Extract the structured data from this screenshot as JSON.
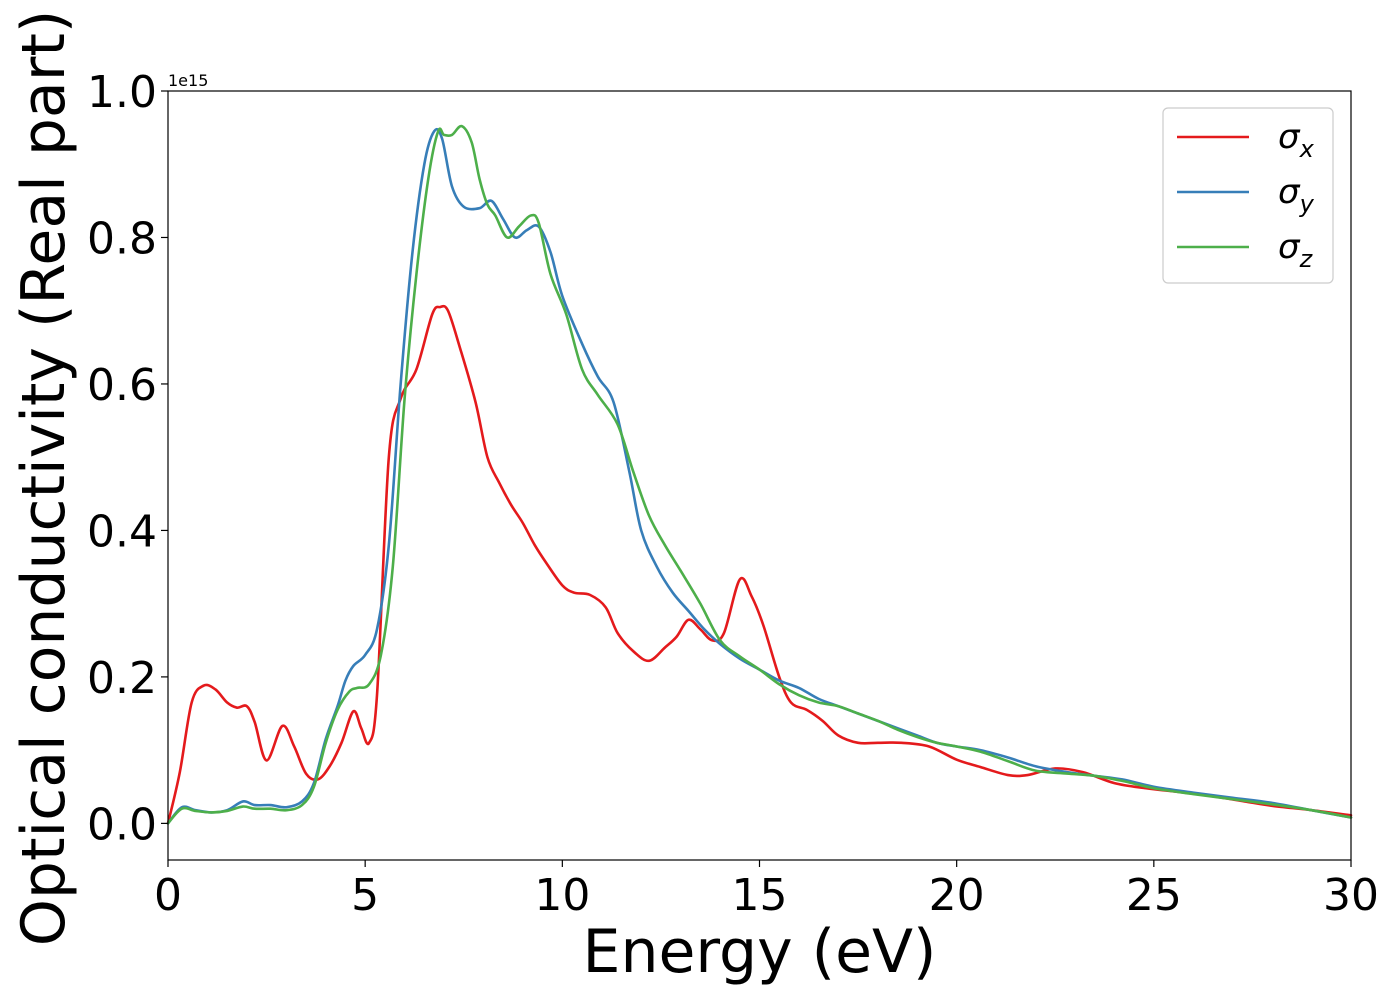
{
  "chart_data": {
    "type": "line",
    "xlabel": "Energy (eV)",
    "ylabel": "Optical conductivity (Real part)",
    "offset_text": "1e15",
    "xlim": [
      0,
      30
    ],
    "ylim": [
      -0.05,
      1.0
    ],
    "xticks": [
      0,
      5,
      10,
      15,
      20,
      25,
      30
    ],
    "xtick_labels": [
      "0",
      "5",
      "10",
      "15",
      "20",
      "25",
      "30"
    ],
    "yticks": [
      0.0,
      0.2,
      0.4,
      0.6,
      0.8,
      1.0
    ],
    "ytick_labels": [
      "0.0",
      "0.2",
      "0.4",
      "0.6",
      "0.8",
      "1.0"
    ],
    "grid": false,
    "legend_position": "top-right",
    "series": [
      {
        "name": "σx",
        "legend_base": "σ",
        "legend_sub": "x",
        "color": "#e41a1c",
        "x": [
          0,
          0.3,
          0.6,
          0.9,
          1.2,
          1.5,
          1.75,
          2.0,
          2.2,
          2.5,
          2.9,
          3.2,
          3.5,
          3.8,
          4.1,
          4.4,
          4.7,
          4.9,
          5.1,
          5.3,
          5.6,
          5.9,
          6.3,
          6.7,
          6.9,
          7.1,
          7.4,
          7.8,
          8.1,
          8.4,
          8.7,
          9.0,
          9.3,
          9.6,
          10.0,
          10.3,
          10.7,
          11.1,
          11.4,
          11.8,
          12.2,
          12.6,
          12.9,
          13.2,
          13.5,
          13.8,
          14.1,
          14.5,
          14.8,
          15.1,
          15.5,
          15.8,
          16.2,
          16.6,
          17.0,
          17.5,
          18.0,
          18.6,
          19.3,
          20.0,
          20.6,
          21.3,
          21.8,
          22.5,
          23.2,
          24.0,
          24.8,
          25.6,
          26.5,
          27.3,
          28.0,
          29.0,
          30.0
        ],
        "y": [
          0.0,
          0.07,
          0.165,
          0.188,
          0.183,
          0.165,
          0.158,
          0.16,
          0.138,
          0.086,
          0.133,
          0.105,
          0.068,
          0.06,
          0.078,
          0.11,
          0.153,
          0.13,
          0.11,
          0.175,
          0.5,
          0.58,
          0.62,
          0.695,
          0.705,
          0.7,
          0.65,
          0.575,
          0.5,
          0.465,
          0.435,
          0.41,
          0.38,
          0.355,
          0.325,
          0.315,
          0.312,
          0.295,
          0.26,
          0.235,
          0.222,
          0.24,
          0.255,
          0.278,
          0.265,
          0.25,
          0.26,
          0.333,
          0.31,
          0.27,
          0.2,
          0.165,
          0.155,
          0.14,
          0.12,
          0.11,
          0.11,
          0.11,
          0.105,
          0.087,
          0.077,
          0.066,
          0.066,
          0.075,
          0.07,
          0.055,
          0.048,
          0.043,
          0.037,
          0.03,
          0.024,
          0.018,
          0.011
        ]
      },
      {
        "name": "σy",
        "legend_base": "σ",
        "legend_sub": "y",
        "color": "#377eb8",
        "x": [
          0,
          0.35,
          0.7,
          1.1,
          1.5,
          1.9,
          2.2,
          2.6,
          3.0,
          3.4,
          3.7,
          4.0,
          4.3,
          4.5,
          4.7,
          5.0,
          5.3,
          5.6,
          5.9,
          6.2,
          6.5,
          6.75,
          6.95,
          7.2,
          7.5,
          7.9,
          8.2,
          8.5,
          8.8,
          9.1,
          9.4,
          9.7,
          10.0,
          10.5,
          10.9,
          11.3,
          11.7,
          12.0,
          12.4,
          12.8,
          13.2,
          13.6,
          14.0,
          14.5,
          15.0,
          15.5,
          16.0,
          16.5,
          17.0,
          17.5,
          18.0,
          18.5,
          19.0,
          19.5,
          20.0,
          20.6,
          21.3,
          22.0,
          22.8,
          23.5,
          24.2,
          25.0,
          26.0,
          27.0,
          28.0,
          29.0,
          30.0
        ],
        "y": [
          0.0,
          0.022,
          0.018,
          0.015,
          0.018,
          0.03,
          0.025,
          0.025,
          0.022,
          0.03,
          0.055,
          0.115,
          0.16,
          0.195,
          0.215,
          0.23,
          0.265,
          0.38,
          0.6,
          0.78,
          0.9,
          0.945,
          0.935,
          0.87,
          0.842,
          0.84,
          0.85,
          0.825,
          0.8,
          0.81,
          0.815,
          0.78,
          0.72,
          0.655,
          0.61,
          0.575,
          0.48,
          0.4,
          0.35,
          0.315,
          0.29,
          0.265,
          0.245,
          0.225,
          0.21,
          0.195,
          0.185,
          0.17,
          0.16,
          0.15,
          0.14,
          0.13,
          0.12,
          0.11,
          0.105,
          0.1,
          0.09,
          0.078,
          0.07,
          0.065,
          0.06,
          0.05,
          0.042,
          0.035,
          0.028,
          0.018,
          0.008
        ]
      },
      {
        "name": "σz",
        "legend_base": "σ",
        "legend_sub": "z",
        "color": "#4daf4a",
        "x": [
          0,
          0.35,
          0.7,
          1.1,
          1.5,
          1.9,
          2.2,
          2.6,
          3.0,
          3.4,
          3.7,
          4.0,
          4.3,
          4.6,
          4.8,
          5.1,
          5.4,
          5.7,
          6.0,
          6.3,
          6.6,
          6.85,
          7.0,
          7.2,
          7.45,
          7.7,
          7.9,
          8.1,
          8.3,
          8.6,
          8.9,
          9.2,
          9.4,
          9.7,
          10.1,
          10.5,
          10.9,
          11.4,
          11.8,
          12.2,
          12.6,
          13.0,
          13.5,
          14.0,
          14.5,
          15.0,
          15.5,
          16.0,
          16.5,
          17.0,
          17.5,
          18.0,
          18.5,
          19.0,
          19.5,
          20.0,
          20.6,
          21.3,
          22.0,
          22.8,
          23.5,
          24.2,
          25.0,
          26.0,
          27.0,
          28.0,
          29.0,
          30.0
        ],
        "y": [
          0.0,
          0.02,
          0.017,
          0.015,
          0.017,
          0.023,
          0.02,
          0.02,
          0.018,
          0.025,
          0.05,
          0.11,
          0.155,
          0.18,
          0.185,
          0.19,
          0.23,
          0.35,
          0.58,
          0.75,
          0.88,
          0.945,
          0.94,
          0.94,
          0.952,
          0.93,
          0.88,
          0.845,
          0.83,
          0.8,
          0.815,
          0.83,
          0.82,
          0.75,
          0.695,
          0.62,
          0.585,
          0.545,
          0.48,
          0.42,
          0.38,
          0.345,
          0.3,
          0.25,
          0.228,
          0.21,
          0.19,
          0.175,
          0.165,
          0.16,
          0.15,
          0.14,
          0.128,
          0.118,
          0.11,
          0.105,
          0.098,
          0.085,
          0.072,
          0.068,
          0.065,
          0.058,
          0.048,
          0.04,
          0.033,
          0.026,
          0.018,
          0.008
        ]
      }
    ]
  }
}
